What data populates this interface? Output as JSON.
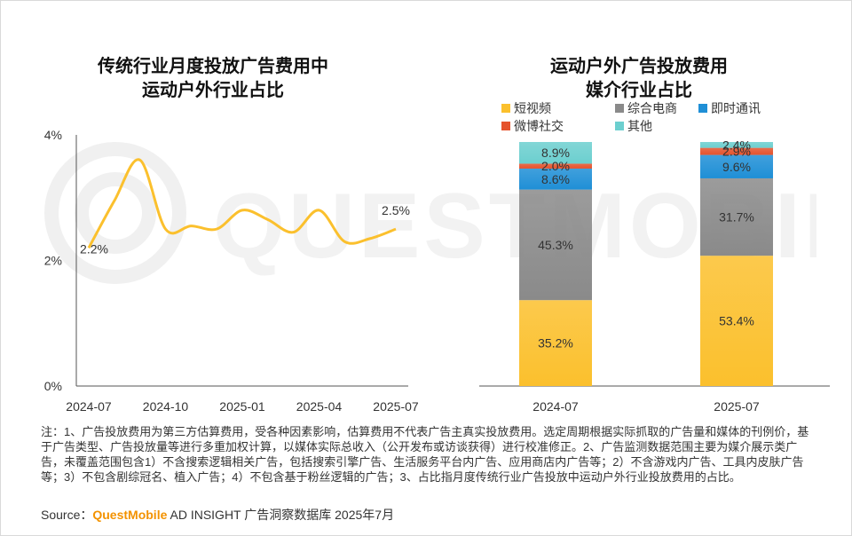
{
  "watermark": "QUESTMOBILE",
  "left_chart": {
    "title_line1": "传统行业月度投放广告费用中",
    "title_line2": "运动户外行业占比"
  },
  "right_chart": {
    "title_line1": "运动户外广告投放费用",
    "title_line2": "媒介行业占比"
  },
  "chart_data": [
    {
      "type": "line",
      "title": "传统行业月度投放广告费用中运动户外行业占比",
      "x": [
        "2024-07",
        "2024-08",
        "2024-09",
        "2024-10",
        "2024-11",
        "2024-12",
        "2025-01",
        "2025-02",
        "2025-03",
        "2025-04",
        "2025-05",
        "2025-06",
        "2025-07"
      ],
      "xticks": [
        "2024-07",
        "2024-10",
        "2025-01",
        "2025-04",
        "2025-07"
      ],
      "series": [
        {
          "values": [
            2.2,
            2.95,
            3.6,
            2.5,
            2.55,
            2.5,
            2.8,
            2.65,
            2.45,
            2.8,
            2.3,
            2.35,
            2.5
          ]
        }
      ],
      "yticks": [
        "0%",
        "2%",
        "4%"
      ],
      "ylim": [
        0,
        4
      ],
      "annotations": [
        {
          "x": "2024-07",
          "text": "2.2%"
        },
        {
          "x": "2025-07",
          "text": "2.5%"
        }
      ],
      "color": "#fbc02d"
    },
    {
      "type": "bar",
      "stacked": true,
      "title": "运动户外广告投放费用媒介行业占比",
      "categories": [
        "2024-07",
        "2025-07"
      ],
      "ylim": [
        0,
        100
      ],
      "series": [
        {
          "name": "短视频",
          "values": [
            35.2,
            53.4
          ],
          "labels": [
            "35.2%",
            "53.4%"
          ],
          "color": "#fbc02d"
        },
        {
          "name": "综合电商",
          "values": [
            45.3,
            31.7
          ],
          "labels": [
            "45.3%",
            "31.7%"
          ],
          "color": "#8a8a8a"
        },
        {
          "name": "即时通讯",
          "values": [
            8.6,
            9.6
          ],
          "labels": [
            "8.6%",
            "9.6%"
          ],
          "color": "#1f8fd6"
        },
        {
          "name": "微博社交",
          "values": [
            2.0,
            2.9
          ],
          "labels": [
            "2.0%",
            "2.9%"
          ],
          "color": "#e5532d"
        },
        {
          "name": "其他",
          "values": [
            8.9,
            2.4
          ],
          "labels": [
            "8.9%",
            "2.4%"
          ],
          "color": "#6ccfcf"
        }
      ],
      "legend_position": "top"
    }
  ],
  "note": "注：1、广告投放费用为第三方估算费用，受各种因素影响，估算费用不代表广告主真实投放费用。选定周期根据实际抓取的广告量和媒体的刊例价，基于广告类型、广告投放量等进行多重加权计算，以媒体实际总收入（公开发布或访谈获得）进行校准修正。2、广告监测数据范围主要为媒介展示类广告，未覆盖范围包含1）不含搜索逻辑相关广告，包括搜索引擎广告、生活服务平台内广告、应用商店内广告等；2）不含游戏内广告、工具内皮肤广告等；3）不包含剧综冠名、植入广告；4）不包含基于粉丝逻辑的广告；3、占比指月度传统行业广告投放中运动户外行业投放费用的占比。",
  "source": {
    "prefix": "Source：",
    "brand": "QuestMobile",
    "suffix": " AD INSIGHT 广告洞察数据库 2025年7月"
  }
}
